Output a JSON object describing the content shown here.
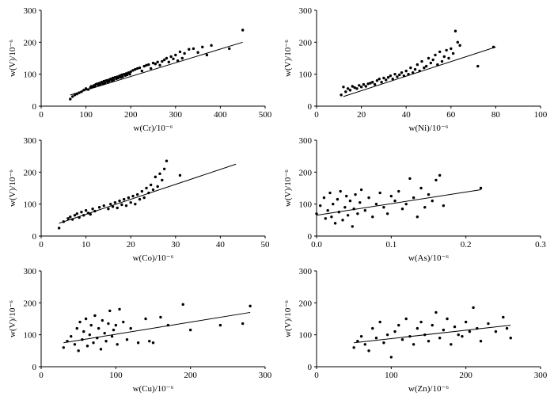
{
  "chart_data": [
    {
      "type": "scatter",
      "xlabel": "w(Cr)/10⁻⁶",
      "ylabel": "w(V)/10⁻⁶",
      "xlim": [
        0,
        500
      ],
      "ylim": [
        0,
        300
      ],
      "xticks": [
        0,
        100,
        200,
        300,
        400,
        500
      ],
      "yticks": [
        0,
        100,
        200,
        300
      ],
      "trendline": [
        [
          65,
          35
        ],
        [
          450,
          200
        ]
      ],
      "x": [
        65,
        70,
        75,
        80,
        85,
        90,
        95,
        100,
        105,
        110,
        112,
        115,
        118,
        120,
        122,
        125,
        128,
        130,
        132,
        135,
        138,
        140,
        142,
        145,
        148,
        150,
        152,
        155,
        158,
        160,
        162,
        165,
        168,
        170,
        172,
        175,
        178,
        180,
        182,
        185,
        188,
        190,
        192,
        195,
        198,
        200,
        205,
        210,
        215,
        220,
        225,
        230,
        235,
        240,
        245,
        250,
        255,
        260,
        265,
        270,
        275,
        280,
        285,
        290,
        295,
        300,
        305,
        310,
        315,
        320,
        330,
        340,
        350,
        360,
        370,
        380,
        420,
        450
      ],
      "y": [
        22,
        30,
        35,
        38,
        42,
        45,
        50,
        55,
        52,
        58,
        62,
        60,
        65,
        62,
        68,
        70,
        65,
        72,
        68,
        75,
        70,
        78,
        72,
        80,
        75,
        82,
        78,
        85,
        80,
        88,
        82,
        90,
        86,
        92,
        88,
        95,
        90,
        98,
        92,
        100,
        96,
        102,
        98,
        105,
        100,
        108,
        112,
        115,
        118,
        120,
        110,
        125,
        128,
        130,
        118,
        135,
        132,
        138,
        128,
        140,
        145,
        150,
        138,
        155,
        148,
        160,
        142,
        170,
        150,
        165,
        178,
        180,
        168,
        185,
        160,
        190,
        180,
        238
      ]
    },
    {
      "type": "scatter",
      "xlabel": "w(Ni)/10⁻⁶",
      "ylabel": "w(V)/10⁻⁶",
      "xlim": [
        0,
        100
      ],
      "ylim": [
        0,
        300
      ],
      "xticks": [
        0,
        20,
        40,
        60,
        80,
        100
      ],
      "yticks": [
        0,
        100,
        200,
        300
      ],
      "trendline": [
        [
          12,
          30
        ],
        [
          80,
          185
        ]
      ],
      "x": [
        11,
        12,
        13,
        14,
        15,
        16,
        17,
        18,
        19,
        20,
        21,
        22,
        23,
        24,
        25,
        26,
        27,
        28,
        29,
        30,
        31,
        32,
        33,
        34,
        35,
        36,
        37,
        38,
        39,
        40,
        41,
        42,
        43,
        44,
        45,
        46,
        47,
        48,
        49,
        50,
        51,
        52,
        53,
        54,
        55,
        56,
        57,
        58,
        59,
        60,
        61,
        62,
        63,
        64,
        72,
        79
      ],
      "y": [
        35,
        60,
        45,
        55,
        50,
        62,
        58,
        55,
        65,
        60,
        68,
        62,
        70,
        72,
        75,
        68,
        80,
        85,
        75,
        88,
        82,
        90,
        95,
        85,
        100,
        92,
        98,
        105,
        95,
        110,
        100,
        120,
        105,
        115,
        130,
        110,
        140,
        120,
        125,
        150,
        135,
        145,
        160,
        130,
        170,
        140,
        155,
        175,
        150,
        180,
        165,
        235,
        200,
        190,
        125,
        185
      ]
    },
    {
      "type": "scatter",
      "xlabel": "w(Co)/10⁻⁶",
      "ylabel": "w(V)/10⁻⁶",
      "xlim": [
        0,
        50
      ],
      "ylim": [
        0,
        300
      ],
      "xticks": [
        0,
        10,
        20,
        30,
        40,
        50
      ],
      "yticks": [
        0,
        100,
        200,
        300
      ],
      "trendline": [
        [
          4,
          40
        ],
        [
          43.5,
          225
        ]
      ],
      "x": [
        4,
        5,
        6,
        6.5,
        7,
        7.5,
        8,
        8.5,
        9,
        9.5,
        10,
        10.5,
        11,
        11.5,
        12,
        13,
        14,
        15,
        15.5,
        16,
        16.5,
        17,
        17.5,
        18,
        18.5,
        19,
        19.5,
        20,
        20.5,
        21,
        21.5,
        22,
        22.5,
        23,
        23.5,
        24,
        24.5,
        25,
        25.5,
        26,
        26.5,
        27,
        27.5,
        28,
        31
      ],
      "y": [
        25,
        45,
        55,
        60,
        52,
        65,
        70,
        58,
        75,
        65,
        80,
        72,
        68,
        85,
        78,
        90,
        95,
        85,
        100,
        92,
        105,
        88,
        110,
        98,
        115,
        95,
        120,
        105,
        125,
        100,
        130,
        115,
        140,
        120,
        150,
        135,
        160,
        145,
        185,
        155,
        195,
        175,
        210,
        235,
        190
      ]
    },
    {
      "type": "scatter",
      "xlabel": "w(As)/10⁻⁶",
      "ylabel": "w(V)/10⁻⁶",
      "xlim": [
        0,
        0.3
      ],
      "ylim": [
        0,
        300
      ],
      "xticks": [
        0.0,
        0.1,
        0.2,
        0.3
      ],
      "yticks": [
        0,
        100,
        200,
        300
      ],
      "trendline": [
        [
          0.0,
          65
        ],
        [
          0.22,
          145
        ]
      ],
      "x": [
        0.0,
        0.005,
        0.01,
        0.012,
        0.015,
        0.018,
        0.02,
        0.022,
        0.025,
        0.028,
        0.03,
        0.032,
        0.035,
        0.038,
        0.04,
        0.042,
        0.045,
        0.048,
        0.05,
        0.052,
        0.055,
        0.058,
        0.06,
        0.065,
        0.07,
        0.075,
        0.08,
        0.085,
        0.09,
        0.095,
        0.1,
        0.105,
        0.11,
        0.115,
        0.12,
        0.125,
        0.13,
        0.135,
        0.14,
        0.145,
        0.15,
        0.155,
        0.16,
        0.165,
        0.17,
        0.22
      ],
      "y": [
        70,
        95,
        120,
        55,
        80,
        135,
        60,
        100,
        40,
        115,
        75,
        140,
        50,
        90,
        125,
        65,
        110,
        30,
        85,
        130,
        70,
        105,
        145,
        80,
        120,
        60,
        100,
        135,
        90,
        70,
        125,
        110,
        140,
        85,
        100,
        180,
        120,
        60,
        150,
        90,
        130,
        110,
        175,
        190,
        95,
        150
      ]
    },
    {
      "type": "scatter",
      "xlabel": "w(Cu)/10⁻⁶",
      "ylabel": "w(V)/10⁻⁶",
      "xlim": [
        0,
        300
      ],
      "ylim": [
        0,
        300
      ],
      "xticks": [
        0,
        100,
        200,
        300
      ],
      "yticks": [
        0,
        100,
        200,
        300
      ],
      "trendline": [
        [
          30,
          75
        ],
        [
          280,
          170
        ]
      ],
      "x": [
        30,
        35,
        40,
        45,
        48,
        50,
        52,
        55,
        57,
        60,
        62,
        65,
        67,
        70,
        72,
        75,
        77,
        80,
        82,
        85,
        87,
        90,
        92,
        95,
        97,
        100,
        102,
        105,
        110,
        115,
        120,
        130,
        140,
        145,
        150,
        160,
        170,
        190,
        200,
        240,
        270,
        280
      ],
      "y": [
        60,
        80,
        95,
        70,
        120,
        50,
        140,
        85,
        110,
        150,
        65,
        100,
        130,
        75,
        160,
        90,
        120,
        55,
        145,
        105,
        80,
        135,
        175,
        95,
        115,
        130,
        70,
        180,
        140,
        85,
        120,
        75,
        150,
        80,
        75,
        155,
        130,
        195,
        115,
        130,
        135,
        190
      ]
    },
    {
      "type": "scatter",
      "xlabel": "w(Zn)/10⁻⁶",
      "ylabel": "w(V)/10⁻⁶",
      "xlim": [
        0,
        300
      ],
      "ylim": [
        0,
        300
      ],
      "xticks": [
        0,
        100,
        200,
        300
      ],
      "yticks": [
        0,
        100,
        200,
        300
      ],
      "trendline": [
        [
          50,
          75
        ],
        [
          260,
          130
        ]
      ],
      "x": [
        50,
        55,
        60,
        65,
        70,
        75,
        80,
        85,
        90,
        95,
        100,
        105,
        110,
        115,
        120,
        125,
        130,
        135,
        140,
        145,
        150,
        155,
        160,
        165,
        170,
        175,
        180,
        185,
        190,
        195,
        200,
        205,
        210,
        215,
        220,
        230,
        240,
        250,
        255,
        260
      ],
      "y": [
        60,
        80,
        95,
        70,
        50,
        120,
        90,
        140,
        75,
        100,
        30,
        110,
        130,
        85,
        150,
        95,
        70,
        120,
        140,
        100,
        80,
        130,
        170,
        90,
        115,
        150,
        70,
        125,
        100,
        95,
        140,
        110,
        185,
        120,
        80,
        135,
        110,
        155,
        120,
        90
      ]
    }
  ]
}
